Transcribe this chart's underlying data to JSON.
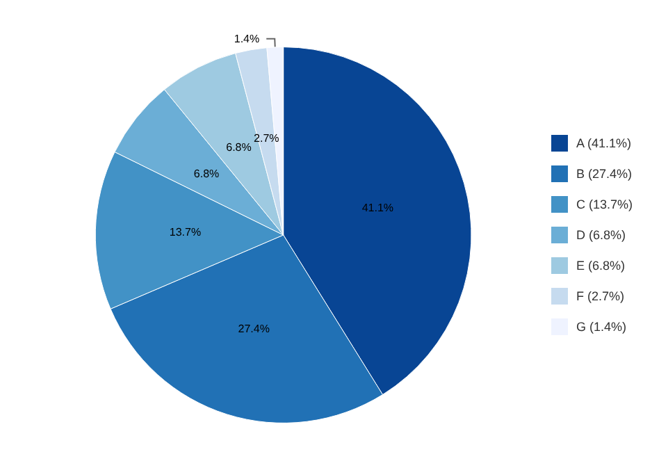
{
  "chart_data": {
    "type": "pie",
    "categories": [
      "A (41.1%)",
      "B (27.4%)",
      "C (13.7%)",
      "D (6.8%)",
      "E (6.8%)",
      "F (2.7%)",
      "G (1.4%)"
    ],
    "values": [
      41.1,
      27.4,
      13.7,
      6.8,
      6.8,
      2.7,
      1.4
    ],
    "value_labels": [
      "41.1%",
      "27.4%",
      "13.7%",
      "6.8%",
      "6.8%",
      "2.7%",
      "1.4%"
    ],
    "colors": [
      "#084594",
      "#2171b5",
      "#4292c6",
      "#6baed6",
      "#9ecae1",
      "#c6dbef",
      "#eff3ff"
    ],
    "legend": "right"
  }
}
